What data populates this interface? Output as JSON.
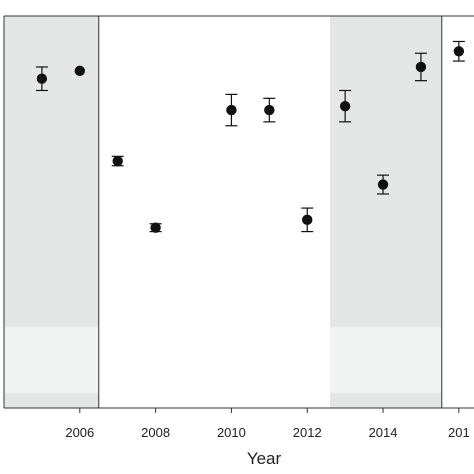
{
  "chart_data": {
    "type": "scatter",
    "title": "",
    "xlabel": "Year",
    "ylabel": "",
    "x_tick_labels": [
      "2006",
      "2008",
      "2010",
      "2012",
      "2014",
      "201"
    ],
    "grid": false,
    "legend": "none",
    "xlim": [
      2004,
      2016.4
    ],
    "ylim": [
      0,
      1
    ],
    "series": [
      {
        "x": [
          2005,
          2006,
          2007,
          2008,
          2010,
          2011,
          2012,
          2013,
          2014,
          2015,
          2016
        ],
        "y": [
          0.84,
          0.86,
          0.63,
          0.46,
          0.76,
          0.76,
          0.48,
          0.77,
          0.57,
          0.87,
          0.91
        ],
        "error": [
          0.03,
          0.0,
          0.012,
          0.01,
          0.04,
          0.03,
          0.03,
          0.04,
          0.024,
          0.035,
          0.025
        ]
      }
    ],
    "shaded_regions": [
      {
        "from": 2004,
        "to": 2006.5,
        "color": "#e5e7e7",
        "band_color": "#f2f3f3"
      },
      {
        "from": 2012.6,
        "to": 2015.55,
        "color": "#e5e7e7",
        "band_color": "#f2f3f3"
      }
    ],
    "vertical_lines": [
      2006.5,
      2015.55
    ],
    "colors": {
      "marker": "#111111",
      "axis": "#333333"
    }
  }
}
